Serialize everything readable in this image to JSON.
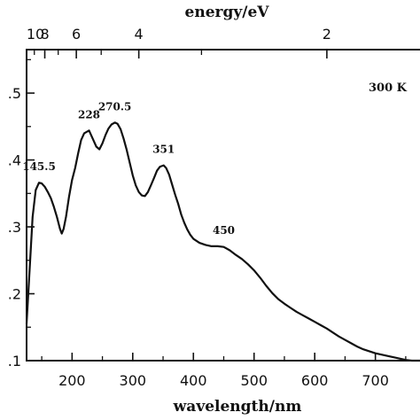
{
  "chart_data": {
    "type": "line",
    "xlabel": "wavelength/nm",
    "x2label": "energy/eV",
    "xlim": [
      125,
      775
    ],
    "ylim": [
      0.1,
      0.565
    ],
    "x_ticks": [
      200,
      300,
      400,
      500,
      600,
      700
    ],
    "x_tick_labels": [
      "200",
      "300",
      "400",
      "500",
      "600",
      "700"
    ],
    "y_ticks": [
      0.1,
      0.2,
      0.3,
      0.4,
      0.5
    ],
    "y_tick_labels": [
      ".1",
      ".2",
      ".3",
      ".4",
      ".5"
    ],
    "top_ticks": [
      {
        "label": "10",
        "wavelength": 124
      },
      {
        "label": "8",
        "wavelength": 155
      },
      {
        "label": "6",
        "wavelength": 207
      },
      {
        "label": "4",
        "wavelength": 310
      },
      {
        "label": "2",
        "wavelength": 620
      }
    ],
    "annotations": [
      {
        "text": "145.5",
        "x": 145.5,
        "y": 0.366
      },
      {
        "text": "228",
        "x": 228,
        "y": 0.444
      },
      {
        "text": "270.5",
        "x": 270.5,
        "y": 0.456
      },
      {
        "text": "351",
        "x": 351,
        "y": 0.392
      },
      {
        "text": "450",
        "x": 450,
        "y": 0.271
      }
    ],
    "legend_text": "300 K",
    "grid": false,
    "series": [
      {
        "color": "#111111",
        "x": [
          125,
          130,
          135,
          140,
          145.5,
          150,
          155,
          160,
          165,
          170,
          175,
          180,
          183,
          186,
          190,
          195,
          200,
          205,
          210,
          215,
          220,
          228,
          235,
          240,
          245,
          250,
          255,
          260,
          265,
          270.5,
          275,
          280,
          285,
          290,
          295,
          300,
          305,
          310,
          315,
          320,
          325,
          330,
          335,
          340,
          345,
          351,
          355,
          360,
          365,
          370,
          375,
          380,
          385,
          390,
          395,
          400,
          410,
          420,
          430,
          440,
          450,
          460,
          470,
          480,
          490,
          500,
          510,
          520,
          530,
          540,
          550,
          560,
          570,
          580,
          590,
          600,
          610,
          620,
          630,
          640,
          650,
          660,
          670,
          680,
          690,
          700,
          710,
          720,
          730,
          740,
          750,
          760,
          770,
          775
        ],
        "y": [
          0.155,
          0.235,
          0.315,
          0.355,
          0.366,
          0.365,
          0.36,
          0.352,
          0.343,
          0.33,
          0.315,
          0.297,
          0.29,
          0.297,
          0.315,
          0.345,
          0.37,
          0.388,
          0.41,
          0.43,
          0.44,
          0.444,
          0.43,
          0.42,
          0.416,
          0.425,
          0.437,
          0.447,
          0.453,
          0.456,
          0.454,
          0.446,
          0.432,
          0.415,
          0.396,
          0.377,
          0.362,
          0.352,
          0.347,
          0.346,
          0.352,
          0.362,
          0.373,
          0.384,
          0.39,
          0.392,
          0.388,
          0.378,
          0.363,
          0.348,
          0.334,
          0.318,
          0.306,
          0.296,
          0.288,
          0.282,
          0.276,
          0.273,
          0.271,
          0.271,
          0.27,
          0.265,
          0.258,
          0.252,
          0.244,
          0.235,
          0.224,
          0.212,
          0.201,
          0.192,
          0.185,
          0.179,
          0.173,
          0.168,
          0.163,
          0.158,
          0.153,
          0.148,
          0.142,
          0.136,
          0.131,
          0.126,
          0.121,
          0.117,
          0.114,
          0.111,
          0.109,
          0.107,
          0.105,
          0.103,
          0.101,
          0.1,
          0.1,
          0.1
        ]
      }
    ]
  }
}
